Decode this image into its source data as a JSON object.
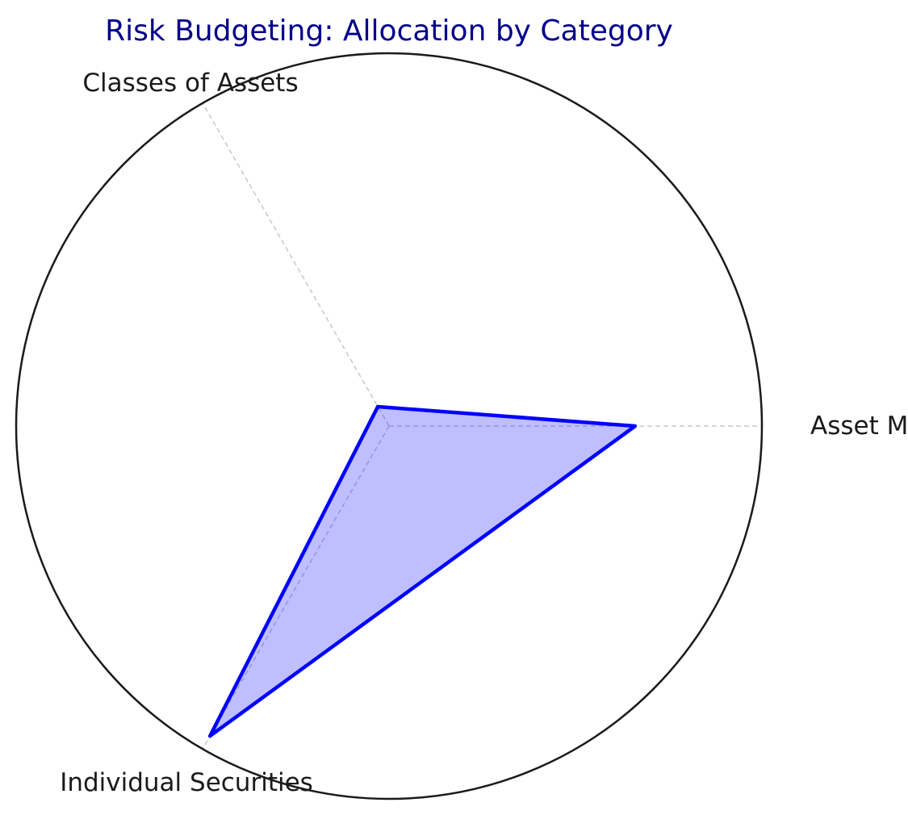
{
  "chart_data": {
    "type": "radar",
    "title": "Risk Budgeting: Allocation by Category",
    "categories": [
      "Asset Managers",
      "Classes of Assets",
      "Individual Securities"
    ],
    "series": [
      {
        "values": [
          0.66,
          0.06,
          0.96
        ]
      }
    ],
    "rlim": [
      0,
      1
    ],
    "radial_tick_labels_shown": false,
    "grid": "dashed spokes only",
    "colors": {
      "title": "#00008b",
      "line": "#0000ff",
      "fill": "#0000ff",
      "fill_opacity": 0.25,
      "outer_circle": "#1a1a1a",
      "spokes": "#c8c8c8",
      "labels": "#1a1a1a"
    }
  }
}
